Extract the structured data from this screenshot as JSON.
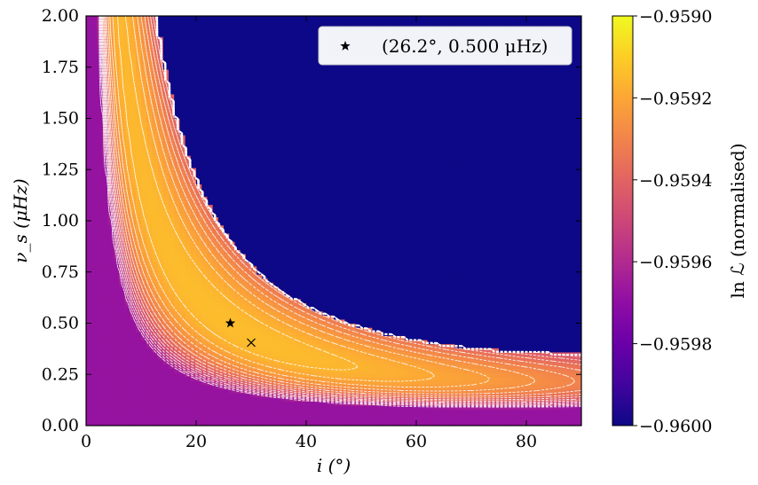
{
  "chart_data": {
    "type": "heatmap",
    "title": "",
    "xlabel": "i (°)",
    "ylabel": "ν_s (μHz)",
    "xlim": [
      0,
      90
    ],
    "ylim": [
      0,
      2.0
    ],
    "x_ticks": [
      0,
      20,
      40,
      60,
      80
    ],
    "x_tick_labels": [
      "0",
      "20",
      "40",
      "60",
      "80"
    ],
    "y_ticks": [
      0,
      0.25,
      0.5,
      0.75,
      1.0,
      1.25,
      1.5,
      1.75,
      2.0
    ],
    "y_tick_labels": [
      "0.00",
      "0.25",
      "0.50",
      "0.75",
      "1.00",
      "1.25",
      "1.50",
      "1.75",
      "2.00"
    ],
    "colorbar": {
      "label": "ln ℒ (normalised)",
      "range": [
        -0.96,
        -0.959
      ],
      "ticks": [
        -0.96,
        -0.9598,
        -0.9596,
        -0.9594,
        -0.9592,
        -0.959
      ],
      "tick_labels": [
        "−0.9600",
        "−0.9598",
        "−0.9596",
        "−0.9594",
        "−0.9592",
        "−0.9590"
      ],
      "colormap": "plasma"
    },
    "contours": {
      "color": "#ffffff",
      "style": "dashed"
    },
    "markers": [
      {
        "symbol": "star",
        "x": 26.2,
        "y": 0.5,
        "color": "#000000"
      },
      {
        "symbol": "cross",
        "x": 30.0,
        "y": 0.405,
        "color": "#000000"
      }
    ],
    "legend": {
      "position": "top-right",
      "entries": [
        {
          "symbol": "star",
          "label": "(26.2°, 0.500 μHz)"
        }
      ]
    },
    "grid": false
  }
}
